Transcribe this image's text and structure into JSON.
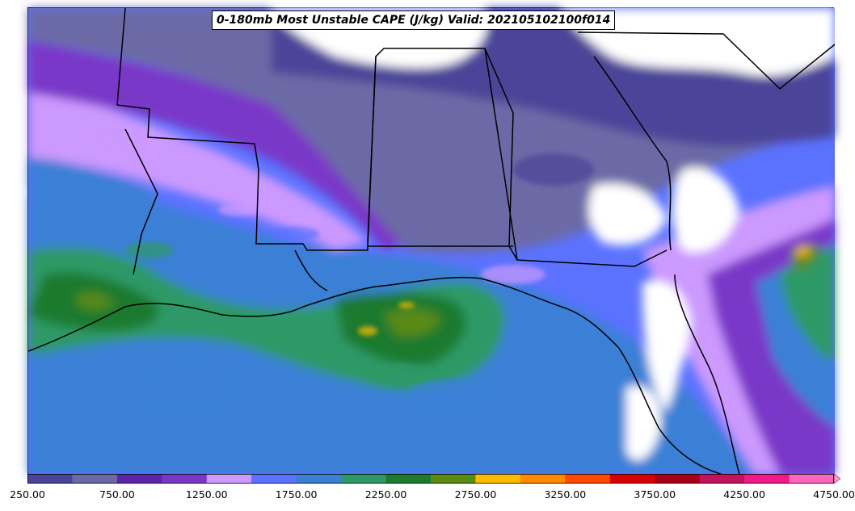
{
  "title": "0-180mb Most Unstable CAPE (J/kg) Valid: 202105102100f014",
  "colorbar": {
    "colors": [
      "#4b4499",
      "#6c6aa6",
      "#5a25a8",
      "#7a38c8",
      "#cc99ff",
      "#5b72ff",
      "#3b80d6",
      "#2e9966",
      "#1f7a2e",
      "#5a8a12",
      "#ffbb00",
      "#ff8a00",
      "#ff4a00",
      "#d80000",
      "#a80018",
      "#c2135e",
      "#f21889",
      "#ff66bb"
    ],
    "tick_labels": [
      "250.00",
      "750.00",
      "1250.00",
      "1750.00",
      "2250.00",
      "2750.00",
      "3250.00",
      "3750.00",
      "4250.00",
      "4750.00"
    ],
    "extend_color": "#ff9ad5"
  }
}
